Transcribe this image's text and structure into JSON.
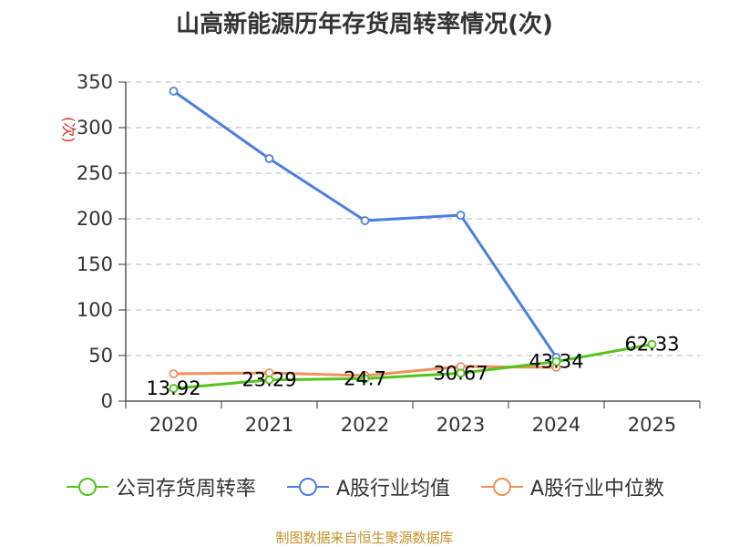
{
  "chart_data": {
    "type": "line",
    "title": "山高新能源历年存货周转率情况(次)",
    "ylabel": "(次)",
    "xlabel": "",
    "categories": [
      "2020",
      "2021",
      "2022",
      "2023",
      "2024",
      "2025"
    ],
    "ylim": [
      0,
      350
    ],
    "yticks": [
      0,
      50,
      100,
      150,
      200,
      250,
      300,
      350
    ],
    "grid": true,
    "legend_position": "bottom",
    "series": [
      {
        "name": "A股行业均值",
        "color": "#4a7fe0",
        "values": [
          340,
          266,
          198,
          204,
          48,
          null
        ]
      },
      {
        "name": "A股行业中位数",
        "color": "#f0905a",
        "values": [
          30,
          31,
          28,
          38,
          37,
          null
        ]
      },
      {
        "name": "公司存货周转率",
        "color": "#52c41a",
        "values": [
          13.92,
          23.29,
          24.7,
          30.67,
          43.34,
          62.33
        ],
        "labels": [
          "13.92",
          "23.29",
          "24.7",
          "30.67",
          "43.34",
          "62.33"
        ]
      }
    ],
    "source": "制图数据来自恒生聚源数据库"
  }
}
